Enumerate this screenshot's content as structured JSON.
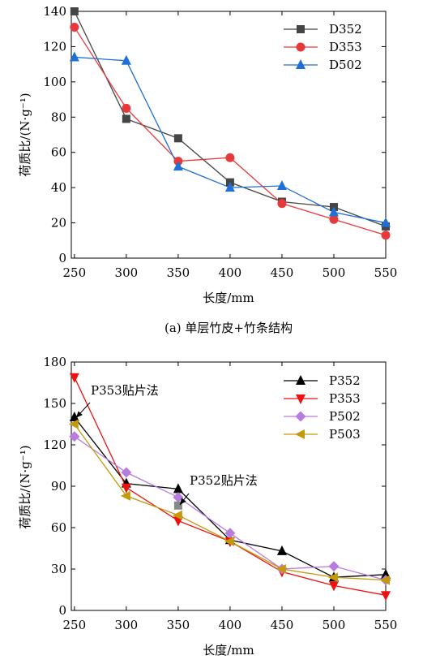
{
  "chart_data": [
    {
      "type": "line",
      "caption": "(a) 单层竹皮+竹条结构",
      "xlabel": "长度/mm",
      "ylabel": "荷质比/(N·g⁻¹)",
      "x": [
        250,
        300,
        350,
        400,
        450,
        500,
        550
      ],
      "xlim": [
        247,
        550
      ],
      "ylim": [
        0,
        140
      ],
      "xticks": [
        250,
        300,
        350,
        400,
        450,
        500,
        550
      ],
      "yticks": [
        0,
        20,
        40,
        60,
        80,
        100,
        120,
        140
      ],
      "legend_position": "top-right",
      "grid": false,
      "series": [
        {
          "name": "D352",
          "color": "#454545",
          "marker": "square",
          "values": [
            140,
            79,
            68,
            43,
            32,
            29,
            18
          ]
        },
        {
          "name": "D353",
          "color": "#e8393a",
          "marker": "circle",
          "values": [
            131,
            85,
            55,
            57,
            31,
            22,
            13
          ]
        },
        {
          "name": "D502",
          "color": "#1f6fd8",
          "marker": "triangle",
          "values": [
            114,
            112,
            52,
            40,
            41,
            26,
            20
          ]
        }
      ]
    },
    {
      "type": "line",
      "caption": "",
      "xlabel": "长度/mm",
      "ylabel": "荷质比/(N·g⁻¹)",
      "x": [
        250,
        300,
        350,
        400,
        450,
        500,
        550
      ],
      "xlim": [
        247,
        550
      ],
      "ylim": [
        0,
        180
      ],
      "xticks": [
        250,
        300,
        350,
        400,
        450,
        500,
        550
      ],
      "yticks": [
        0,
        30,
        60,
        90,
        120,
        150,
        180
      ],
      "legend_position": "top-right",
      "grid": false,
      "series": [
        {
          "name": "P352",
          "color": "#000000",
          "marker": "triangle",
          "values": [
            140,
            92,
            88,
            51,
            43,
            24,
            26
          ]
        },
        {
          "name": "P353",
          "color": "#ee1111",
          "marker": "triangle-down",
          "values": [
            169,
            89,
            65,
            50,
            28,
            18,
            11
          ]
        },
        {
          "name": "P502",
          "color": "#b87be0",
          "marker": "diamond",
          "values": [
            126,
            100,
            82,
            56,
            30,
            32,
            22
          ]
        },
        {
          "name": "P503",
          "color": "#c49a0a",
          "marker": "triangle-left",
          "values": [
            135,
            83,
            69,
            50,
            30,
            24,
            22
          ]
        }
      ],
      "extra_points": [
        {
          "series": "P352",
          "x": 350,
          "y": 76,
          "marker": "square",
          "color": "#888888"
        }
      ],
      "annotations": [
        {
          "text": "P353贴片法",
          "x": 250,
          "y": 139
        },
        {
          "text": "P352贴片法",
          "x": 350,
          "y": 76
        }
      ]
    }
  ]
}
